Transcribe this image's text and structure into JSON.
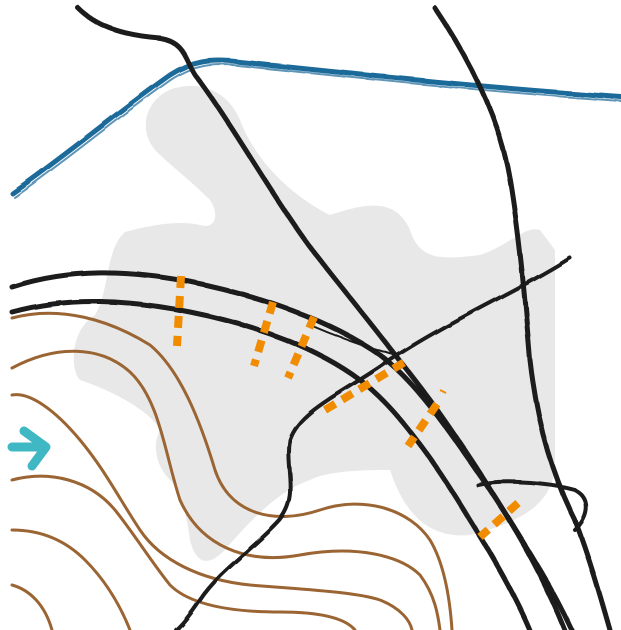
{
  "map": {
    "colors": {
      "background": "#ffffff",
      "area_fill": "#e8e8e8",
      "road": "#1a1a1a",
      "river": "#1e6a99",
      "contour": "#9a6433",
      "marker": "#f18b00",
      "arrow": "#3fb8c4"
    },
    "icons": [
      "arrow-right-icon"
    ]
  }
}
